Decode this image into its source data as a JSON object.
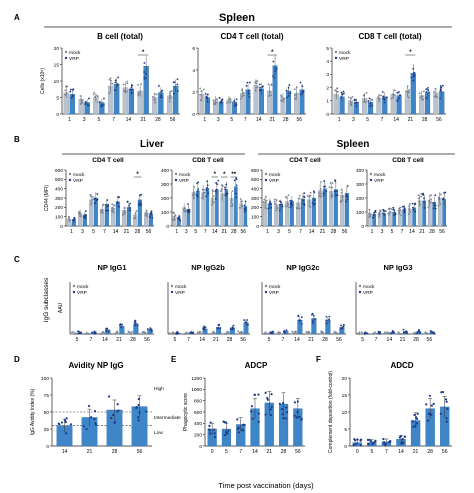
{
  "figure": {
    "panel_letters": [
      "A",
      "B",
      "C",
      "D",
      "E",
      "F"
    ],
    "spleen_header": "Spleen",
    "liver_header": "Liver",
    "spleen_header_b": "Spleen",
    "c_axis_label": "IgG subclasses",
    "footer_xlabel": "Time post vaccination (days)",
    "legend_mock": "mock",
    "legend_vrp": "VRP",
    "high_label": "High",
    "intermediate_label": "Intermediate",
    "low_label": "Low",
    "star": "*",
    "double_star": "**"
  },
  "colors": {
    "mock": "#b9c3ce",
    "vrp": "#3f86c8",
    "dot_dark": "#1d3a8a"
  },
  "chart_data": [
    {
      "id": "A1",
      "type": "bar",
      "title": "B cell (total)",
      "ylabel": "Cells (x10⁶)",
      "categories": [
        "1",
        "3",
        "5",
        "7",
        "14",
        "21",
        "28",
        "56"
      ],
      "ylim": [
        0,
        20
      ],
      "yticks": [
        0,
        5,
        10,
        15,
        20
      ],
      "series": [
        {
          "name": "mock",
          "values": [
            6.5,
            4.5,
            5.0,
            8.5,
            8.0,
            7.0,
            5.0,
            5.5
          ]
        },
        {
          "name": "VRP",
          "values": [
            6.0,
            3.5,
            3.5,
            9.0,
            7.5,
            14.5,
            6.5,
            8.5
          ]
        }
      ],
      "annotations": [
        {
          "category": "21",
          "text": "*"
        }
      ]
    },
    {
      "id": "A2",
      "type": "bar",
      "title": "CD4 T cell (total)",
      "ylabel": "",
      "categories": [
        "1",
        "3",
        "5",
        "7",
        "14",
        "21",
        "28",
        "56"
      ],
      "ylim": [
        0,
        6
      ],
      "yticks": [
        0,
        2,
        4,
        6
      ],
      "series": [
        {
          "name": "mock",
          "values": [
            1.8,
            1.3,
            1.3,
            1.9,
            2.6,
            2.1,
            1.5,
            1.9
          ]
        },
        {
          "name": "VRP",
          "values": [
            1.5,
            1.1,
            1.1,
            2.2,
            2.3,
            4.4,
            2.1,
            2.2
          ]
        }
      ],
      "annotations": [
        {
          "category": "21",
          "text": "*"
        }
      ]
    },
    {
      "id": "A3",
      "type": "bar",
      "title": "CD8 T cell (total)",
      "ylabel": "",
      "categories": [
        "1",
        "3",
        "5",
        "7",
        "14",
        "21",
        "28",
        "56"
      ],
      "ylim": [
        0,
        5
      ],
      "yticks": [
        0,
        1,
        2,
        3,
        4,
        5
      ],
      "series": [
        {
          "name": "mock",
          "values": [
            1.5,
            1.0,
            1.2,
            1.2,
            1.5,
            1.7,
            1.4,
            1.6
          ]
        },
        {
          "name": "VRP",
          "values": [
            1.3,
            0.9,
            0.9,
            1.3,
            1.4,
            3.1,
            1.6,
            1.7
          ]
        }
      ],
      "annotations": [
        {
          "category": "21",
          "text": "*"
        }
      ]
    },
    {
      "id": "B1",
      "type": "bar",
      "title": "CD4 T cell",
      "ylabel": "CD44 (MFI)",
      "categories": [
        "1",
        "3",
        "5",
        "7",
        "14",
        "21",
        "28",
        "56"
      ],
      "ylim": [
        0,
        600
      ],
      "yticks": [
        0,
        100,
        200,
        300,
        400,
        500,
        600
      ],
      "series": [
        {
          "name": "mock",
          "values": [
            70,
            140,
            280,
            180,
            190,
            170,
            120,
            140
          ]
        },
        {
          "name": "VRP",
          "values": [
            60,
            120,
            300,
            220,
            260,
            200,
            280,
            130
          ]
        }
      ],
      "annotations": [
        {
          "category": "28",
          "text": "*"
        }
      ]
    },
    {
      "id": "B2",
      "type": "bar",
      "title": "CD8 T cell",
      "ylabel": "",
      "categories": [
        "1",
        "3",
        "5",
        "7",
        "14",
        "21",
        "28",
        "56"
      ],
      "ylim": [
        0,
        400
      ],
      "yticks": [
        0,
        100,
        200,
        300,
        400
      ],
      "series": [
        {
          "name": "mock",
          "values": [
            70,
            130,
            240,
            240,
            200,
            230,
            200,
            160
          ]
        },
        {
          "name": "VRP",
          "values": [
            60,
            120,
            250,
            270,
            260,
            260,
            280,
            140
          ]
        }
      ],
      "annotations": [
        {
          "category": "14",
          "text": "*"
        },
        {
          "category": "21",
          "text": "*"
        },
        {
          "category": "28",
          "text": "**"
        }
      ]
    },
    {
      "id": "B3",
      "type": "bar",
      "title": "CD4 T cell",
      "ylabel": "",
      "categories": [
        "1",
        "3",
        "5",
        "7",
        "14",
        "21",
        "28",
        "56"
      ],
      "ylim": [
        0,
        600
      ],
      "yticks": [
        0,
        100,
        200,
        300,
        400,
        500,
        600
      ],
      "series": [
        {
          "name": "mock",
          "values": [
            250,
            230,
            260,
            250,
            280,
            380,
            370,
            330
          ]
        },
        {
          "name": "VRP",
          "values": [
            240,
            230,
            260,
            290,
            300,
            400,
            390,
            350
          ]
        }
      ],
      "annotations": []
    },
    {
      "id": "B4",
      "type": "bar",
      "title": "CD8 T cell",
      "ylabel": "",
      "categories": [
        "1",
        "3",
        "5",
        "7",
        "14",
        "21",
        "28",
        "56"
      ],
      "ylim": [
        0,
        400
      ],
      "yticks": [
        0,
        100,
        200,
        300,
        400
      ],
      "series": [
        {
          "name": "mock",
          "values": [
            90,
            95,
            100,
            110,
            120,
            180,
            180,
            200
          ]
        },
        {
          "name": "VRP",
          "values": [
            85,
            90,
            100,
            120,
            130,
            180,
            170,
            190
          ]
        }
      ],
      "annotations": []
    },
    {
      "id": "C1",
      "type": "bar",
      "title": "NP IgG1",
      "ylabel": "AAU",
      "categories": [
        "5",
        "7",
        "14",
        "21",
        "28",
        "56"
      ],
      "ylim": [
        0,
        10
      ],
      "yticks": [],
      "series": [
        {
          "name": "mock",
          "values": [
            0.1,
            0.1,
            0.2,
            0.2,
            0.2,
            0.2
          ]
        },
        {
          "name": "VRP",
          "values": [
            0.2,
            0.4,
            0.8,
            1.5,
            2.0,
            0.9
          ]
        }
      ],
      "annotations": []
    },
    {
      "id": "C2",
      "type": "bar",
      "title": "NP IgG2b",
      "ylabel": "",
      "categories": [
        "5",
        "7",
        "14",
        "21",
        "28",
        "56"
      ],
      "ylim": [
        0,
        10
      ],
      "yticks": [],
      "series": [
        {
          "name": "mock",
          "values": [
            0.1,
            0.1,
            0.2,
            0.2,
            0.2,
            0.2
          ]
        },
        {
          "name": "VRP",
          "values": [
            0.2,
            0.4,
            1.0,
            1.3,
            1.2,
            2.2
          ]
        }
      ],
      "annotations": []
    },
    {
      "id": "C3",
      "type": "bar",
      "title": "NP IgG2c",
      "ylabel": "",
      "categories": [
        "5",
        "7",
        "14",
        "21",
        "28",
        "56"
      ],
      "ylim": [
        0,
        10
      ],
      "yticks": [],
      "series": [
        {
          "name": "mock",
          "values": [
            0.1,
            0.1,
            0.2,
            0.2,
            0.2,
            0.2
          ]
        },
        {
          "name": "VRP",
          "values": [
            0.3,
            0.5,
            2.7,
            3.0,
            2.6,
            1.3
          ]
        }
      ],
      "annotations": []
    },
    {
      "id": "C4",
      "type": "bar",
      "title": "NP IgG3",
      "ylabel": "",
      "categories": [
        "5",
        "7",
        "14",
        "21",
        "28",
        "56"
      ],
      "ylim": [
        0,
        10
      ],
      "yticks": [],
      "series": [
        {
          "name": "mock",
          "values": [
            0.1,
            0.1,
            0.1,
            0.1,
            0.1,
            0.1
          ]
        },
        {
          "name": "VRP",
          "values": [
            0.1,
            0.2,
            0.3,
            0.5,
            0.5,
            0.3
          ]
        }
      ],
      "annotations": []
    },
    {
      "id": "D",
      "type": "bar",
      "title": "Avidity NP IgG",
      "ylabel": "IgG Avidity Index (%)",
      "categories": [
        "14",
        "21",
        "28",
        "56"
      ],
      "ylim": [
        0,
        100
      ],
      "yticks": [
        0,
        25,
        50,
        75,
        100
      ],
      "series": [
        {
          "name": "VRP",
          "values": [
            30,
            42,
            53,
            58
          ]
        }
      ],
      "reference_lines": [
        50,
        30
      ],
      "annotations": []
    },
    {
      "id": "E",
      "type": "bar",
      "title": "ADCP",
      "ylabel": "Phagocytic score",
      "categories": [
        "0",
        "5",
        "7",
        "14",
        "21",
        "28",
        "56"
      ],
      "ylim": [
        0,
        1200
      ],
      "yticks": [
        0,
        200,
        400,
        600,
        800,
        1000,
        1200
      ],
      "series": [
        {
          "name": "VRP",
          "values": [
            300,
            300,
            380,
            660,
            760,
            740,
            660
          ]
        }
      ],
      "annotations": []
    },
    {
      "id": "F",
      "type": "bar",
      "title": "ADCD",
      "ylabel": "Complement deposition (fold-control)",
      "categories": [
        "0",
        "5",
        "7",
        "14",
        "21",
        "28",
        "56"
      ],
      "ylim": [
        0,
        20
      ],
      "yticks": [
        0,
        5,
        10,
        15,
        20
      ],
      "series": [
        {
          "name": "VRP",
          "values": [
            1.0,
            1.0,
            1.2,
            2.0,
            7.5,
            11.0,
            11.5
          ]
        }
      ],
      "annotations": []
    }
  ]
}
